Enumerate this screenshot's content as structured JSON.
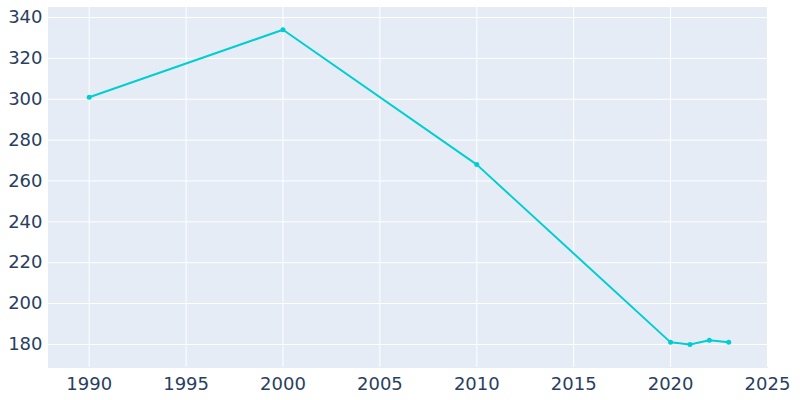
{
  "chart_data": {
    "type": "line",
    "x": [
      1990,
      2000,
      2010,
      2020,
      2021,
      2022,
      2023
    ],
    "values": [
      301,
      334,
      268,
      181,
      180,
      182,
      181
    ],
    "color": "#00ced1",
    "marker": "circle",
    "xlim": [
      1987.9,
      2025
    ],
    "ylim": [
      168.7,
      344.9
    ],
    "xticks": [
      1990,
      1995,
      2000,
      2005,
      2010,
      2015,
      2020,
      2025
    ],
    "yticks": [
      180,
      200,
      220,
      240,
      260,
      280,
      300,
      320,
      340
    ],
    "grid": true
  }
}
